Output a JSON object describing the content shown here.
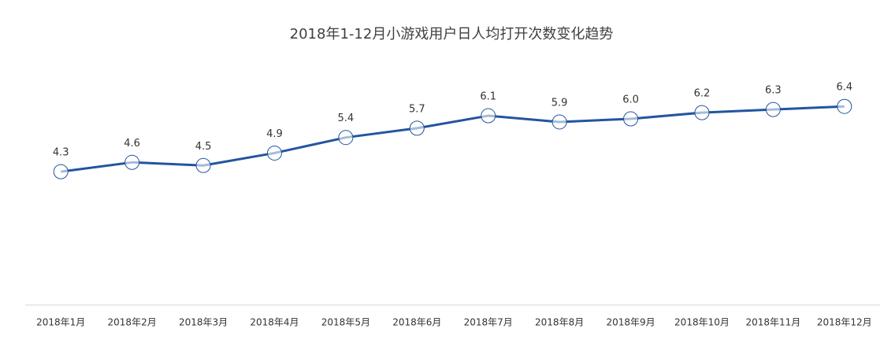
{
  "chart_data": {
    "type": "line",
    "title": "2018年1-12月小游戏用户日人均打开次数变化趋势",
    "categories": [
      "2018年1月",
      "2018年2月",
      "2018年3月",
      "2018年4月",
      "2018年5月",
      "2018年6月",
      "2018年7月",
      "2018年8月",
      "2018年9月",
      "2018年10月",
      "2018年11月",
      "2018年12月"
    ],
    "series": [
      {
        "color": "#2255a0",
        "values": [
          4.3,
          4.6,
          4.5,
          4.9,
          5.4,
          5.7,
          6.1,
          5.9,
          6.0,
          6.2,
          6.3,
          6.4
        ],
        "value_labels": [
          "4.3",
          "4.6",
          "4.5",
          "4.9",
          "5.4",
          "5.7",
          "6.1",
          "5.9",
          "6.0",
          "6.2",
          "6.3",
          "6.4"
        ]
      }
    ],
    "ylim": [
      0,
      8
    ]
  }
}
